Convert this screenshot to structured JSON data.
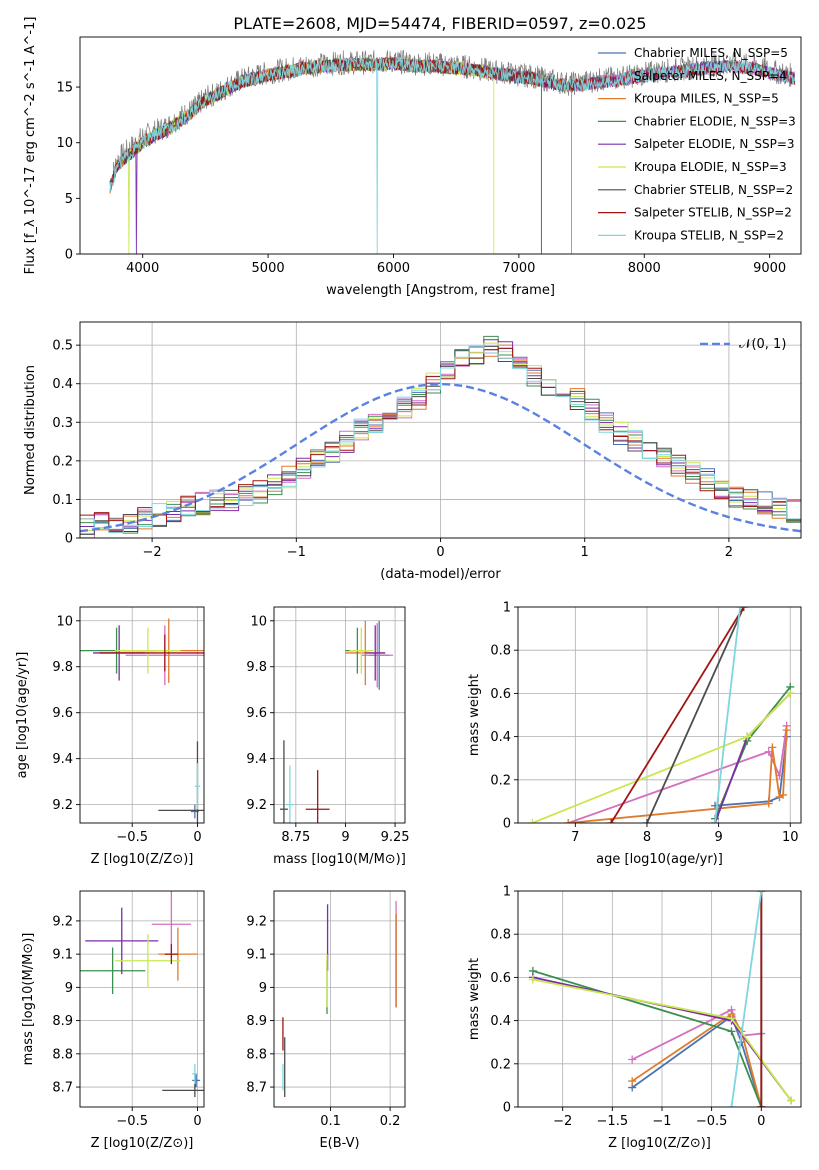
{
  "figure_title": "PLATE=2608, MJD=54474, FIBERID=0597, z=0.025",
  "colors": {
    "Chabrier MILES": "#4c72b0",
    "Salpeter MILES": "#d46fc0",
    "Kroupa MILES": "#e07b2c",
    "Chabrier ELODIE": "#3c8f4f",
    "Salpeter ELODIE": "#7b2ea8",
    "Kroupa ELODIE": "#c9e84f",
    "Chabrier STELIB": "#4d4d4d",
    "Salpeter STELIB": "#a01515",
    "Kroupa STELIB": "#7fd6de"
  },
  "chart_data": [
    {
      "id": "spectrum",
      "type": "line",
      "xlabel": "wavelength [Angstrom, rest frame]",
      "ylabel": "Flux [f_λ 10^-17 erg cm^-2 s^-1 A^-1]",
      "xlim": [
        3500,
        9250
      ],
      "ylim": [
        0,
        19.5
      ],
      "xticks": [
        4000,
        5000,
        6000,
        7000,
        8000,
        9000
      ],
      "yticks": [
        0,
        5,
        10,
        15
      ],
      "grid": false,
      "legend_position": "top-right",
      "legend": [
        {
          "label": "Chabrier MILES, N_SSP=5",
          "model": "Chabrier MILES"
        },
        {
          "label": "Salpeter MILES, N_SSP=4",
          "model": "Salpeter MILES"
        },
        {
          "label": "Kroupa MILES, N_SSP=5",
          "model": "Kroupa MILES"
        },
        {
          "label": "Chabrier ELODIE, N_SSP=3",
          "model": "Chabrier ELODIE"
        },
        {
          "label": "Salpeter ELODIE, N_SSP=3",
          "model": "Salpeter ELODIE"
        },
        {
          "label": "Kroupa ELODIE, N_SSP=3",
          "model": "Kroupa ELODIE"
        },
        {
          "label": "Chabrier STELIB, N_SSP=2",
          "model": "Chabrier STELIB"
        },
        {
          "label": "Salpeter STELIB, N_SSP=2",
          "model": "Salpeter STELIB"
        },
        {
          "label": "Kroupa STELIB, N_SSP=2",
          "model": "Kroupa STELIB"
        }
      ],
      "data_curve": {
        "x": [
          3740,
          3800,
          3900,
          4000,
          4100,
          4200,
          4300,
          4400,
          4500,
          4600,
          4700,
          4800,
          4900,
          5000,
          5100,
          5200,
          5300,
          5400,
          5500,
          5600,
          5700,
          5800,
          5900,
          6000,
          6100,
          6200,
          6300,
          6400,
          6500,
          6600,
          6700,
          6800,
          6900,
          7000,
          7100,
          7200,
          7300,
          7400,
          7500,
          7600,
          7700,
          7800,
          7900,
          8000,
          8100,
          8200,
          8300,
          8400,
          8500,
          8600,
          8700,
          8800,
          8900,
          9000,
          9100,
          9200
        ],
        "y": [
          6.5,
          8.5,
          9.5,
          10.5,
          11.0,
          11.5,
          12.3,
          13.0,
          14.0,
          14.5,
          15.2,
          15.7,
          16.0,
          16.3,
          16.5,
          16.7,
          16.9,
          17.0,
          17.1,
          17.2,
          17.2,
          17.2,
          17.3,
          17.3,
          17.2,
          17.1,
          17.1,
          17.0,
          16.9,
          16.8,
          16.6,
          16.4,
          16.3,
          16.1,
          16.0,
          15.7,
          15.5,
          15.3,
          15.4,
          15.6,
          15.7,
          15.9,
          16.0,
          16.2,
          16.4,
          16.5,
          16.6,
          16.8,
          16.9,
          17.0,
          17.1,
          17.0,
          16.8,
          16.5,
          16.2,
          16.0
        ]
      },
      "model_curve": {
        "x": [
          3740,
          3800,
          3900,
          4000,
          4100,
          4200,
          4300,
          4400,
          4500,
          4600,
          4700,
          4800,
          4900,
          5000,
          5100,
          5200,
          5300,
          5400,
          5500,
          5600,
          5700,
          5800,
          5900,
          6000,
          6100,
          6200,
          6300,
          6400,
          6500,
          6600,
          6700,
          6800,
          6900,
          7000,
          7100,
          7200,
          7300,
          7400,
          7500,
          7600,
          7700,
          7800,
          7900,
          8000,
          8100,
          8200,
          8300,
          8400,
          8500,
          8600,
          8700,
          8800,
          8900,
          9000,
          9100,
          9200
        ],
        "y": [
          6.0,
          8.0,
          9.0,
          10.0,
          10.7,
          11.2,
          12.0,
          12.8,
          13.8,
          14.3,
          15.0,
          15.5,
          15.8,
          16.1,
          16.3,
          16.5,
          16.7,
          16.8,
          16.9,
          17.0,
          17.0,
          17.0,
          17.1,
          17.1,
          17.0,
          16.9,
          16.9,
          16.8,
          16.7,
          16.6,
          16.4,
          16.2,
          16.1,
          15.9,
          15.8,
          15.5,
          15.3,
          15.1,
          15.2,
          15.4,
          15.5,
          15.7,
          15.8,
          16.0,
          16.2,
          16.3,
          16.4,
          16.6,
          16.7,
          16.8,
          16.9,
          16.8,
          16.6,
          16.3,
          16.0,
          15.8
        ]
      },
      "cutoffs": [
        {
          "model": "Kroupa MILES",
          "x_end": 7420
        },
        {
          "model": "Kroupa ELODIE",
          "x_end": 6800
        },
        {
          "model": "Chabrier STELIB",
          "x_end": 7180
        }
      ],
      "dips": [
        {
          "model": "Kroupa STELIB",
          "x": 5870
        },
        {
          "model": "Kroupa ELODIE",
          "x": 3890
        },
        {
          "model": "Salpeter ELODIE",
          "x": 3950
        }
      ]
    },
    {
      "id": "residuals",
      "type": "step",
      "xlabel": "(data-model)/error",
      "ylabel": "Normed distribution",
      "xlim": [
        -2.5,
        2.5
      ],
      "ylim": [
        0,
        0.56
      ],
      "xticks": [
        -2,
        -1,
        0,
        1,
        2
      ],
      "yticks": [
        0.0,
        0.1,
        0.2,
        0.3,
        0.4,
        0.5
      ],
      "grid": true,
      "legend_position": "top-right",
      "legend_label": "𝒩(0, 1)",
      "bin_start": -2.5,
      "bin_width": 0.1,
      "gauss_color": "#5b82e0",
      "base_hist": [
        0.03,
        0.04,
        0.04,
        0.04,
        0.05,
        0.06,
        0.07,
        0.08,
        0.09,
        0.1,
        0.1,
        0.11,
        0.12,
        0.14,
        0.16,
        0.18,
        0.2,
        0.22,
        0.25,
        0.28,
        0.3,
        0.32,
        0.34,
        0.36,
        0.4,
        0.44,
        0.47,
        0.48,
        0.5,
        0.48,
        0.45,
        0.42,
        0.4,
        0.38,
        0.36,
        0.33,
        0.3,
        0.27,
        0.25,
        0.23,
        0.21,
        0.19,
        0.17,
        0.15,
        0.13,
        0.11,
        0.1,
        0.09,
        0.08,
        0.07
      ]
    },
    {
      "id": "Z-age",
      "type": "errorbar",
      "xlabel": "Z [log10(Z/Z⊙)]",
      "ylabel": "age [log10(age/yr)]",
      "xlim": [
        -0.9,
        0.05
      ],
      "ylim": [
        9.12,
        10.06
      ],
      "xticks": [
        -0.5,
        0.0
      ],
      "yticks": [
        9.2,
        9.4,
        9.6,
        9.8,
        10.0
      ],
      "grid": true,
      "points": [
        {
          "model": "Chabrier MILES",
          "x": -0.02,
          "y": 9.17,
          "xerr": 0.03,
          "yerr": 0.03
        },
        {
          "model": "Salpeter MILES",
          "x": -0.25,
          "y": 9.85,
          "xerr": 0.3,
          "yerr": 0.13
        },
        {
          "model": "Kroupa MILES",
          "x": -0.22,
          "y": 9.87,
          "xerr": 0.28,
          "yerr": 0.14
        },
        {
          "model": "Chabrier ELODIE",
          "x": -0.62,
          "y": 9.87,
          "xerr": 0.3,
          "yerr": 0.1
        },
        {
          "model": "Salpeter ELODIE",
          "x": -0.6,
          "y": 9.86,
          "xerr": 0.2,
          "yerr": 0.12
        },
        {
          "model": "Kroupa ELODIE",
          "x": -0.38,
          "y": 9.87,
          "xerr": 0.25,
          "yerr": 0.1
        },
        {
          "model": "Chabrier STELIB",
          "x": 0.0,
          "y": 9.175,
          "xerr": 0.3,
          "yerr": 0.3
        },
        {
          "model": "Salpeter STELIB",
          "x": -0.25,
          "y": 9.86,
          "xerr": 0.5,
          "yerr": 0.08
        },
        {
          "model": "Kroupa STELIB",
          "x": 0.0,
          "y": 9.28,
          "xerr": 0.02,
          "yerr": 0.1
        }
      ]
    },
    {
      "id": "mass-age",
      "type": "errorbar",
      "xlabel": "mass [log10(M/M⊙)]",
      "ylabel": "",
      "xlim": [
        8.64,
        9.3
      ],
      "ylim": [
        9.12,
        10.06
      ],
      "xticks": [
        8.75,
        9.0,
        9.25
      ],
      "yticks": [
        9.2,
        9.4,
        9.6,
        9.8,
        10.0
      ],
      "grid": true,
      "points": [
        {
          "model": "Chabrier MILES",
          "x": 9.17,
          "y": 9.85,
          "xerr": 0.05,
          "yerr": 0.15
        },
        {
          "model": "Salpeter MILES",
          "x": 9.16,
          "y": 9.85,
          "xerr": 0.08,
          "yerr": 0.14
        },
        {
          "model": "Kroupa MILES",
          "x": 9.1,
          "y": 9.86,
          "xerr": 0.1,
          "yerr": 0.14
        },
        {
          "model": "Chabrier ELODIE",
          "x": 9.06,
          "y": 9.87,
          "xerr": 0.06,
          "yerr": 0.1
        },
        {
          "model": "Salpeter ELODIE",
          "x": 9.15,
          "y": 9.86,
          "xerr": 0.05,
          "yerr": 0.12
        },
        {
          "model": "Kroupa ELODIE",
          "x": 9.08,
          "y": 9.87,
          "xerr": 0.06,
          "yerr": 0.1
        },
        {
          "model": "Chabrier STELIB",
          "x": 8.69,
          "y": 9.18,
          "xerr": 0.02,
          "yerr": 0.3
        },
        {
          "model": "Salpeter STELIB",
          "x": 8.86,
          "y": 9.18,
          "xerr": 0.06,
          "yerr": 0.17
        },
        {
          "model": "Kroupa STELIB",
          "x": 8.72,
          "y": 9.2,
          "xerr": 0.02,
          "yerr": 0.17
        }
      ]
    },
    {
      "id": "age-weight",
      "type": "line",
      "xlabel": "age [log10(age/yr)]",
      "ylabel": "mass weight",
      "xlim": [
        6.2,
        10.15
      ],
      "ylim": [
        0,
        1.0
      ],
      "xticks": [
        7,
        8,
        9,
        10
      ],
      "yticks": [
        0.0,
        0.2,
        0.4,
        0.6,
        0.8,
        1.0
      ],
      "grid": true,
      "series": [
        {
          "model": "Chabrier MILES",
          "x": [
            8.95,
            9.7,
            9.85,
            9.95
          ],
          "y": [
            0.08,
            0.1,
            0.12,
            0.4
          ]
        },
        {
          "model": "Salpeter MILES",
          "x": [
            6.9,
            9.7,
            9.85,
            9.95
          ],
          "y": [
            0.0,
            0.33,
            0.22,
            0.45
          ]
        },
        {
          "model": "Kroupa MILES",
          "x": [
            6.9,
            9.7,
            9.75,
            9.85,
            9.9,
            9.95
          ],
          "y": [
            0.0,
            0.09,
            0.35,
            0.12,
            0.13,
            0.43
          ]
        },
        {
          "model": "Chabrier ELODIE",
          "x": [
            8.95,
            9.4,
            10.0
          ],
          "y": [
            0.02,
            0.38,
            0.63
          ]
        },
        {
          "model": "Salpeter ELODIE",
          "x": [
            8.95,
            9.4,
            10.0
          ],
          "y": [
            0.0,
            0.4,
            0.6
          ]
        },
        {
          "model": "Kroupa ELODIE",
          "x": [
            6.4,
            9.4,
            10.0
          ],
          "y": [
            0.0,
            0.4,
            0.6
          ]
        },
        {
          "model": "Chabrier STELIB",
          "x": [
            8.0,
            9.35
          ],
          "y": [
            0.0,
            1.0
          ]
        },
        {
          "model": "Salpeter STELIB",
          "x": [
            7.5,
            9.35
          ],
          "y": [
            0.0,
            1.0
          ]
        },
        {
          "model": "Kroupa STELIB",
          "x": [
            8.95,
            9.3
          ],
          "y": [
            0.0,
            1.0
          ]
        }
      ]
    },
    {
      "id": "Z-mass",
      "type": "errorbar",
      "xlabel": "Z [log10(Z/Z⊙)]",
      "ylabel": "mass [log10(M/M⊙)]",
      "xlim": [
        -0.9,
        0.05
      ],
      "ylim": [
        8.64,
        9.29
      ],
      "xticks": [
        -0.5,
        0.0
      ],
      "yticks": [
        8.7,
        8.8,
        8.9,
        9.0,
        9.1,
        9.2
      ],
      "grid": true,
      "points": [
        {
          "model": "Chabrier MILES",
          "x": -0.01,
          "y": 8.72,
          "xerr": 0.03,
          "yerr": 0.02
        },
        {
          "model": "Salpeter MILES",
          "x": -0.2,
          "y": 9.19,
          "xerr": 0.15,
          "yerr": 0.1
        },
        {
          "model": "Kroupa MILES",
          "x": -0.15,
          "y": 9.1,
          "xerr": 0.15,
          "yerr": 0.08
        },
        {
          "model": "Chabrier ELODIE",
          "x": -0.65,
          "y": 9.05,
          "xerr": 0.25,
          "yerr": 0.07
        },
        {
          "model": "Salpeter ELODIE",
          "x": -0.58,
          "y": 9.14,
          "xerr": 0.28,
          "yerr": 0.1
        },
        {
          "model": "Kroupa ELODIE",
          "x": -0.38,
          "y": 9.08,
          "xerr": 0.25,
          "yerr": 0.08
        },
        {
          "model": "Chabrier STELIB",
          "x": -0.02,
          "y": 8.69,
          "xerr": 0.25,
          "yerr": 0.02
        },
        {
          "model": "Salpeter STELIB",
          "x": -0.2,
          "y": 9.1,
          "xerr": 0.05,
          "yerr": 0.03
        },
        {
          "model": "Kroupa STELIB",
          "x": -0.02,
          "y": 8.74,
          "xerr": 0.02,
          "yerr": 0.03
        }
      ]
    },
    {
      "id": "EBV-mass",
      "type": "errorbar",
      "xlabel": "E(B-V)",
      "ylabel": "",
      "xlim": [
        0.005,
        0.225
      ],
      "ylim": [
        8.64,
        9.29
      ],
      "xticks": [
        0.1,
        0.2
      ],
      "yticks": [
        8.7,
        8.8,
        8.9,
        9.0,
        9.1,
        9.2
      ],
      "grid": true,
      "points": [
        {
          "model": "Chabrier MILES",
          "x": 0.21,
          "y": 9.08,
          "xerr": 0.0,
          "yerr": 0.14
        },
        {
          "model": "Salpeter MILES",
          "x": 0.21,
          "y": 9.1,
          "xerr": 0.0,
          "yerr": 0.16
        },
        {
          "model": "Kroupa MILES",
          "x": 0.21,
          "y": 9.08,
          "xerr": 0.0,
          "yerr": 0.14
        },
        {
          "model": "Chabrier ELODIE",
          "x": 0.094,
          "y": 9.0,
          "xerr": 0.0,
          "yerr": 0.08
        },
        {
          "model": "Salpeter ELODIE",
          "x": 0.095,
          "y": 9.15,
          "xerr": 0.0,
          "yerr": 0.1
        },
        {
          "model": "Kroupa ELODIE",
          "x": 0.094,
          "y": 9.02,
          "xerr": 0.0,
          "yerr": 0.08
        },
        {
          "model": "Chabrier STELIB",
          "x": 0.023,
          "y": 8.76,
          "xerr": 0.0,
          "yerr": 0.09
        },
        {
          "model": "Salpeter STELIB",
          "x": 0.02,
          "y": 8.86,
          "xerr": 0.0,
          "yerr": 0.05
        },
        {
          "model": "Kroupa STELIB",
          "x": 0.02,
          "y": 8.73,
          "xerr": 0.0,
          "yerr": 0.04
        }
      ]
    },
    {
      "id": "Z-weight",
      "type": "line",
      "xlabel": "Z [log10(Z/Z⊙)]",
      "ylabel": "mass weight",
      "xlim": [
        -2.45,
        0.4
      ],
      "ylim": [
        0,
        1.0
      ],
      "xticks": [
        -2.0,
        -1.5,
        -1.0,
        -0.5,
        0.0
      ],
      "yticks": [
        0.0,
        0.2,
        0.4,
        0.6,
        0.8,
        1.0
      ],
      "grid": true,
      "series": [
        {
          "model": "Chabrier MILES",
          "x": [
            -1.3,
            -0.3,
            -0.2,
            0.0
          ],
          "y": [
            0.09,
            0.42,
            0.3,
            0.0
          ]
        },
        {
          "model": "Salpeter MILES",
          "x": [
            -1.3,
            -0.3,
            -0.2,
            0.0
          ],
          "y": [
            0.22,
            0.45,
            0.33,
            0.34
          ]
        },
        {
          "model": "Kroupa MILES",
          "x": [
            -1.3,
            -0.3,
            -0.2,
            0.0
          ],
          "y": [
            0.12,
            0.43,
            0.35,
            0.0
          ]
        },
        {
          "model": "Chabrier ELODIE",
          "x": [
            -2.3,
            -0.3,
            0.0
          ],
          "y": [
            0.63,
            0.35,
            0.0
          ]
        },
        {
          "model": "Salpeter ELODIE",
          "x": [
            -2.3,
            -0.3,
            0.3
          ],
          "y": [
            0.6,
            0.4,
            0.03
          ]
        },
        {
          "model": "Kroupa ELODIE",
          "x": [
            -2.3,
            -0.3,
            0.3
          ],
          "y": [
            0.59,
            0.41,
            0.03
          ]
        },
        {
          "model": "Chabrier STELIB",
          "x": [
            0.0,
            0.0
          ],
          "y": [
            0.0,
            1.0
          ]
        },
        {
          "model": "Salpeter STELIB",
          "x": [
            0.0,
            0.0
          ],
          "y": [
            0.0,
            1.0
          ]
        },
        {
          "model": "Kroupa STELIB",
          "x": [
            -0.3,
            0.0
          ],
          "y": [
            0.0,
            1.0
          ]
        }
      ]
    }
  ]
}
